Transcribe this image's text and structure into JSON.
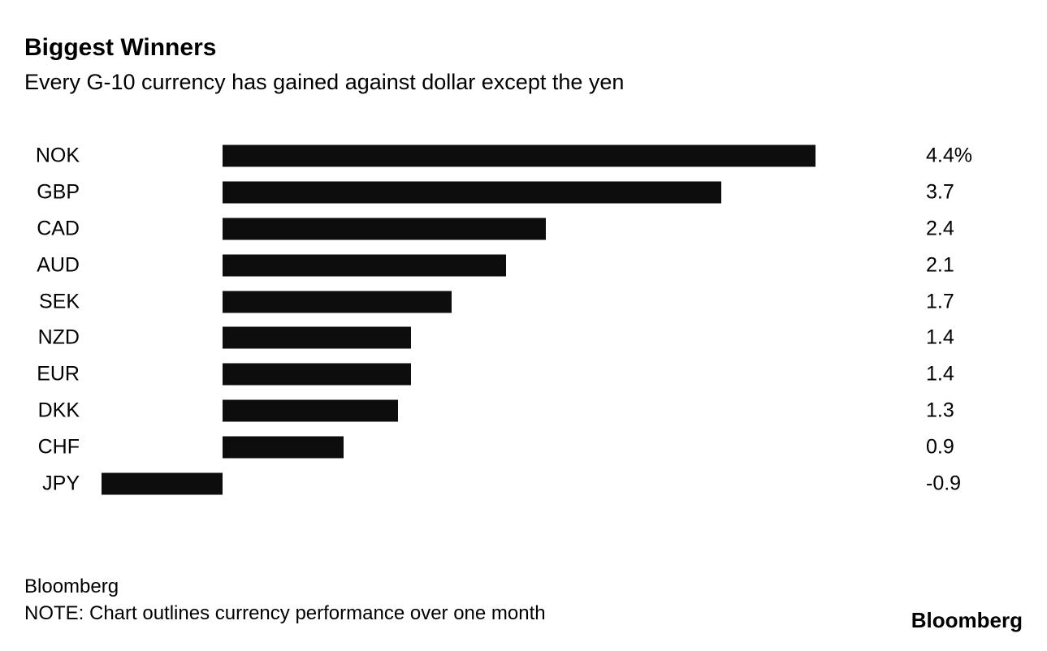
{
  "chart_data": {
    "type": "bar",
    "orientation": "horizontal",
    "title": "Biggest Winners",
    "subtitle": "Every G-10 currency has gained against dollar except the yen",
    "categories": [
      "NOK",
      "GBP",
      "CAD",
      "AUD",
      "SEK",
      "NZD",
      "EUR",
      "DKK",
      "CHF",
      "JPY"
    ],
    "values": [
      4.4,
      3.7,
      2.4,
      2.1,
      1.7,
      1.4,
      1.4,
      1.3,
      0.9,
      -0.9
    ],
    "value_labels": [
      "4.4%",
      "3.7",
      "2.4",
      "2.1",
      "1.7",
      "1.4",
      "1.4",
      "1.3",
      "0.9",
      "-0.9"
    ],
    "xlabel": "",
    "ylabel": "",
    "xlim": [
      -0.9,
      4.4
    ],
    "grid": false,
    "legend": false,
    "bar_color": "#0d0d0d",
    "background_color": "#ffffff",
    "text_color": "#000000"
  },
  "footer": {
    "source": "Bloomberg",
    "note": "NOTE: Chart outlines currency performance over one month",
    "logo": "Bloomberg"
  }
}
